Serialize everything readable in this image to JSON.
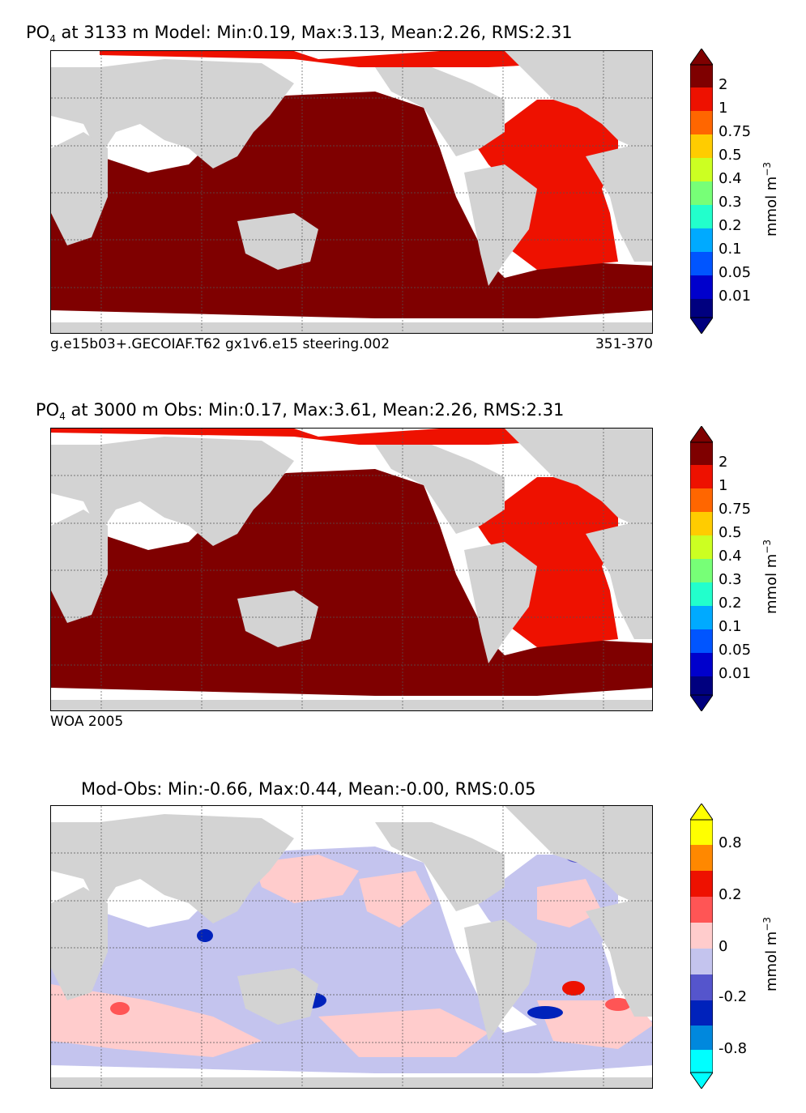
{
  "panels": [
    {
      "title_prefix": "PO",
      "title_sub": "4",
      "title_rest": " at 3133 m Model: Min:0.19, Max:3.13, Mean:2.26, RMS:2.31",
      "caption_left": "g.e15b03+.GECOIAF.T62 gx1v6.e15 steering.002",
      "caption_right": "351-370",
      "colorbar": {
        "unit": "mmol m",
        "unit_sup": "−3",
        "colors": [
          "#00007f",
          "#0000cc",
          "#0055ff",
          "#00aaff",
          "#22ffcc",
          "#77ff77",
          "#ccff22",
          "#ffcc00",
          "#ff6600",
          "#ee1100",
          "#7f0000"
        ],
        "labels": [
          "0.01",
          "0.05",
          "0.1",
          "0.2",
          "0.3",
          "0.4",
          "0.5",
          "0.75",
          "1",
          "2"
        ]
      }
    },
    {
      "title_prefix": "PO",
      "title_sub": "4",
      "title_rest": " at 3000 m Obs: Min:0.17, Max:3.61, Mean:2.26, RMS:2.31",
      "caption_left": "WOA 2005",
      "caption_right": "",
      "colorbar": {
        "unit": "mmol m",
        "unit_sup": "−3",
        "colors": [
          "#00007f",
          "#0000cc",
          "#0055ff",
          "#00aaff",
          "#22ffcc",
          "#77ff77",
          "#ccff22",
          "#ffcc00",
          "#ff6600",
          "#ee1100",
          "#7f0000"
        ],
        "labels": [
          "0.01",
          "0.05",
          "0.1",
          "0.2",
          "0.3",
          "0.4",
          "0.5",
          "0.75",
          "1",
          "2"
        ]
      }
    },
    {
      "title_prefix": "",
      "title_sub": "",
      "title_rest": "Mod-Obs: Min:-0.66, Max:0.44, Mean:-0.00, RMS:0.05",
      "caption_left": "",
      "caption_right": "",
      "colorbar": {
        "unit": "mmol m",
        "unit_sup": "−3",
        "colors": [
          "#00ffff",
          "#0088dd",
          "#0022bb",
          "#5555cc",
          "#c4c4ee",
          "#ffcccc",
          "#ff5555",
          "#ee1100",
          "#ff8800",
          "#ffff00"
        ],
        "labels": [
          "-0.8",
          "-0.2",
          "0",
          "0.2",
          "0.8"
        ]
      }
    }
  ],
  "colors": {
    "land": "#d3d3d3",
    "deep_model": "#7f0000",
    "atlantic": "#ee1100",
    "diff_neg": "#c4c4ee",
    "diff_pos": "#ffcccc"
  }
}
